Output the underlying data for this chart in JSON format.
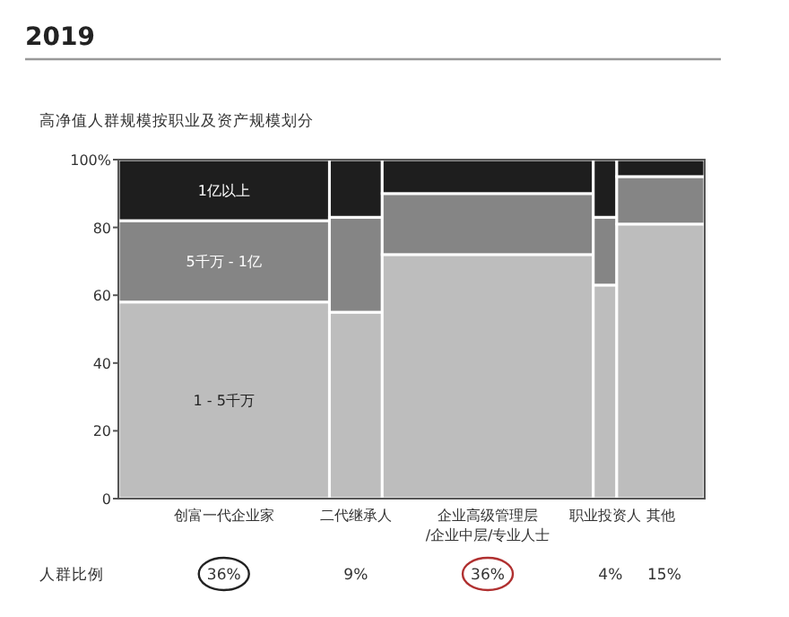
{
  "chart_data": [
    {
      "type": "bar",
      "title": "2019",
      "subtitle": "高净值人群规模按职业及资产规模划分",
      "stacked": true,
      "grid": false,
      "categories": [
        "创富一代企业家",
        "二代继承人",
        "企业高级管理层\n/企业中层/专业人士",
        "职业投资人",
        "其他"
      ],
      "series": [
        {
          "name": "1 - 5千万",
          "color": "#bdbdbd",
          "values": [
            58,
            55,
            72,
            63,
            81
          ]
        },
        {
          "name": "5千万 - 1亿",
          "color": "#858585",
          "values": [
            24,
            28,
            18,
            20,
            14
          ]
        },
        {
          "name": "1亿以上",
          "color": "#1e1e1e",
          "values": [
            18,
            17,
            10,
            17,
            5
          ]
        }
      ],
      "ylim": [
        0,
        100
      ],
      "yticks": [
        0,
        20,
        40,
        60,
        80,
        {
          "value": 100,
          "label": "100%"
        }
      ]
    },
    {
      "type": "other",
      "title": "人群比例",
      "values": [
        36,
        9,
        36,
        4,
        15
      ],
      "value_labels": [
        "36%",
        "9%",
        "36%",
        "4%",
        "15%"
      ]
    }
  ]
}
